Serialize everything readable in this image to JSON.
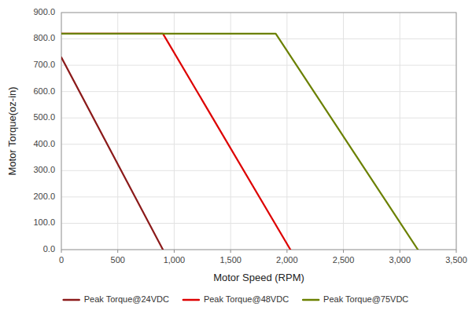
{
  "chart_data": {
    "type": "line",
    "xlabel": "Motor Speed (RPM)",
    "ylabel": "Motor Torque(oz-in)",
    "series": [
      {
        "name": "Peak Torque@24VDC",
        "color": "#8B1A1A",
        "x": [
          0,
          900
        ],
        "values": [
          730,
          0
        ]
      },
      {
        "name": "Peak Torque@48VDC",
        "color": "#DD0000",
        "x": [
          0,
          900,
          2030
        ],
        "values": [
          820,
          820,
          0
        ]
      },
      {
        "name": "Peak Torque@75VDC",
        "color": "#6B8000",
        "x": [
          0,
          1900,
          3160
        ],
        "values": [
          820,
          820,
          0
        ]
      }
    ],
    "xlim": [
      0,
      3500
    ],
    "ylim": [
      0,
      900
    ],
    "xticks": [
      0,
      500,
      {
        "value": 1000,
        "label": "1,000"
      },
      {
        "value": 1500,
        "label": "1,500"
      },
      {
        "value": 2000,
        "label": "2,000"
      },
      {
        "value": 2500,
        "label": "2,500"
      },
      {
        "value": 3000,
        "label": "3,000"
      },
      {
        "value": 3500,
        "label": "3,500"
      }
    ],
    "yticks": [
      {
        "value": 0,
        "label": "0.0"
      },
      {
        "value": 100,
        "label": "100.0"
      },
      {
        "value": 200,
        "label": "200.0"
      },
      {
        "value": 300,
        "label": "300.0"
      },
      {
        "value": 400,
        "label": "400.0"
      },
      {
        "value": 500,
        "label": "500.0"
      },
      {
        "value": 600,
        "label": "600.0"
      },
      {
        "value": 700,
        "label": "700.0"
      },
      {
        "value": 800,
        "label": "800.0"
      },
      {
        "value": 900,
        "label": "900.0"
      }
    ],
    "grid": true,
    "legend": "bottom"
  }
}
